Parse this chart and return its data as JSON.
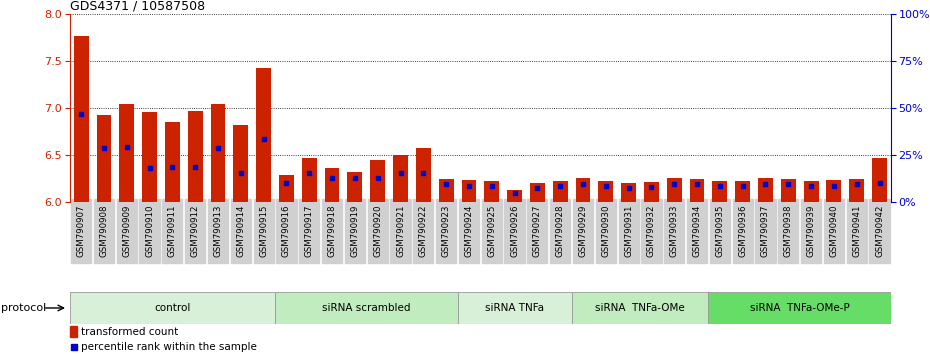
{
  "title": "GDS4371 / 10587508",
  "samples": [
    "GSM790907",
    "GSM790908",
    "GSM790909",
    "GSM790910",
    "GSM790911",
    "GSM790912",
    "GSM790913",
    "GSM790914",
    "GSM790915",
    "GSM790916",
    "GSM790917",
    "GSM790918",
    "GSM790919",
    "GSM790920",
    "GSM790921",
    "GSM790922",
    "GSM790923",
    "GSM790924",
    "GSM790925",
    "GSM790926",
    "GSM790927",
    "GSM790928",
    "GSM790929",
    "GSM790930",
    "GSM790931",
    "GSM790932",
    "GSM790933",
    "GSM790934",
    "GSM790935",
    "GSM790936",
    "GSM790937",
    "GSM790938",
    "GSM790939",
    "GSM790940",
    "GSM790941",
    "GSM790942"
  ],
  "red_values": [
    7.77,
    6.92,
    7.04,
    6.96,
    6.85,
    6.97,
    7.04,
    6.82,
    7.43,
    6.29,
    6.47,
    6.36,
    6.32,
    6.45,
    6.5,
    6.57,
    6.24,
    6.23,
    6.22,
    6.13,
    6.2,
    6.22,
    6.25,
    6.22,
    6.2,
    6.21,
    6.25,
    6.24,
    6.22,
    6.22,
    6.25,
    6.24,
    6.22,
    6.23,
    6.24,
    6.47
  ],
  "blue_values": [
    6.94,
    6.57,
    6.58,
    6.36,
    6.37,
    6.37,
    6.57,
    6.31,
    6.67,
    6.2,
    6.31,
    6.25,
    6.25,
    6.25,
    6.31,
    6.31,
    6.19,
    6.17,
    6.17,
    6.09,
    6.15,
    6.17,
    6.19,
    6.17,
    6.15,
    6.16,
    6.19,
    6.19,
    6.17,
    6.17,
    6.19,
    6.19,
    6.17,
    6.17,
    6.19,
    6.2
  ],
  "groups": [
    {
      "label": "control",
      "start": 0,
      "end": 9,
      "color": "#d8f0d8"
    },
    {
      "label": "siRNA scrambled",
      "start": 9,
      "end": 17,
      "color": "#c0ecc0"
    },
    {
      "label": "siRNA TNFa",
      "start": 17,
      "end": 22,
      "color": "#d8f0d8"
    },
    {
      "label": "siRNA  TNFa-OMe",
      "start": 22,
      "end": 28,
      "color": "#c0ecc0"
    },
    {
      "label": "siRNA  TNFa-OMe-P",
      "start": 28,
      "end": 36,
      "color": "#66dd66"
    }
  ],
  "ylim_left": [
    6.0,
    8.0
  ],
  "ylim_right": [
    0,
    100
  ],
  "yticks_left": [
    6.0,
    6.5,
    7.0,
    7.5,
    8.0
  ],
  "yticks_right": [
    0,
    25,
    50,
    75,
    100
  ],
  "bar_color": "#cc2200",
  "dot_color": "#0000cc",
  "protocol_label": "protocol",
  "legend_red": "transformed count",
  "legend_blue": "percentile rank within the sample"
}
